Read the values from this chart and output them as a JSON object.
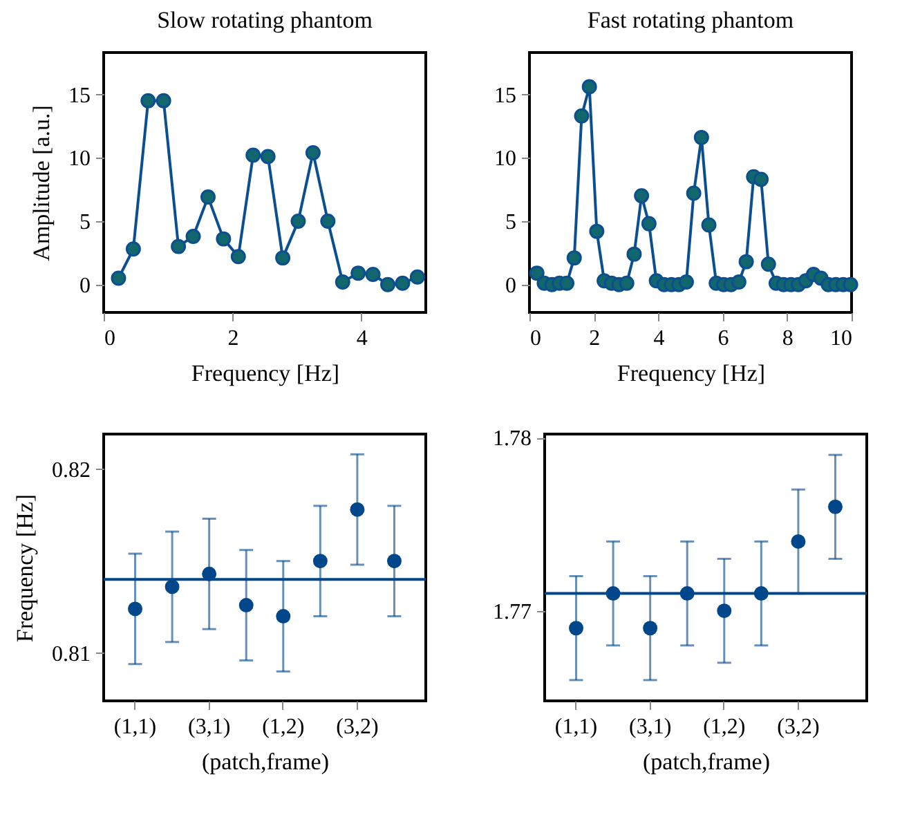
{
  "chart_data": [
    {
      "type": "line",
      "title": "Slow rotating phantom",
      "xlabel": "Frequency [Hz]",
      "ylabel": "Amplitude [a.u.]",
      "xlim": [
        0,
        5
      ],
      "xticks": [
        0,
        2,
        4
      ],
      "ylim": [
        -2.2,
        18.3
      ],
      "yticks": [
        0,
        5,
        10,
        15
      ],
      "marker": "circle",
      "line_style": "solid",
      "grid": false,
      "series": [
        {
          "color": "#0b4f91",
          "x": [
            0.23,
            0.46,
            0.69,
            0.93,
            1.16,
            1.39,
            1.62,
            1.86,
            2.09,
            2.32,
            2.55,
            2.78,
            3.02,
            3.25,
            3.48,
            3.71,
            3.95,
            4.18,
            4.41,
            4.64,
            4.87
          ],
          "values": [
            0.5,
            2.8,
            14.5,
            14.5,
            3.0,
            3.8,
            6.9,
            3.6,
            2.2,
            10.2,
            10.1,
            2.1,
            5.0,
            10.4,
            5.0,
            0.2,
            0.9,
            0.8,
            0.0,
            0.1,
            0.6
          ]
        }
      ]
    },
    {
      "type": "line",
      "title": "Fast rotating phantom",
      "xlabel": "Frequency [Hz]",
      "xlim": [
        0,
        10
      ],
      "xticks": [
        0,
        2,
        4,
        6,
        8,
        10
      ],
      "ylim": [
        -2.2,
        18.3
      ],
      "yticks": [
        0,
        5,
        10,
        15
      ],
      "marker": "circle",
      "line_style": "solid",
      "grid": false,
      "series": [
        {
          "color": "#0b4f91",
          "x": [
            0.23,
            0.46,
            0.7,
            0.93,
            1.16,
            1.39,
            1.62,
            1.86,
            2.09,
            2.32,
            2.55,
            2.78,
            3.02,
            3.25,
            3.48,
            3.71,
            3.94,
            4.18,
            4.41,
            4.64,
            4.87,
            5.1,
            5.34,
            5.57,
            5.8,
            6.03,
            6.26,
            6.5,
            6.73,
            6.96,
            7.19,
            7.42,
            7.66,
            7.89,
            8.12,
            8.35,
            8.58,
            8.82,
            9.05,
            9.28,
            9.51,
            9.74,
            9.97
          ],
          "values": [
            0.9,
            0.1,
            0.0,
            0.1,
            0.1,
            2.1,
            13.3,
            15.6,
            4.2,
            0.3,
            0.1,
            0.0,
            0.1,
            2.4,
            7.0,
            4.8,
            0.3,
            0.0,
            0.0,
            0.0,
            0.2,
            7.2,
            11.6,
            4.7,
            0.1,
            0.0,
            0.0,
            0.2,
            1.8,
            8.5,
            8.3,
            1.6,
            0.1,
            0.0,
            0.0,
            0.0,
            0.3,
            0.8,
            0.5,
            0.0,
            0.0,
            0.0,
            0.0
          ]
        }
      ]
    },
    {
      "type": "scatter",
      "xlabel": "(patch,frame)",
      "ylabel": "Frequency [Hz]",
      "categories": [
        "(1,1)",
        null,
        "(3,1)",
        null,
        "(1,2)",
        null,
        "(3,2)",
        null
      ],
      "ylim": [
        0.8074,
        0.8219
      ],
      "yticks": [
        0.81,
        0.82
      ],
      "marker": "circle",
      "grid": false,
      "series": [
        {
          "color": "#00468b",
          "values": [
            0.8124,
            0.8136,
            0.8143,
            0.8126,
            0.812,
            0.815,
            0.8178,
            0.815
          ],
          "errors": [
            0.003,
            0.003,
            0.003,
            0.003,
            0.003,
            0.003,
            0.003,
            0.003
          ]
        }
      ],
      "ref_lines": [
        {
          "axis": "y",
          "value": 0.814,
          "color": "#00468b"
        }
      ]
    },
    {
      "type": "scatter",
      "xlabel": "(patch,frame)",
      "categories": [
        "(1,1)",
        null,
        "(3,1)",
        null,
        "(1,2)",
        null,
        "(3,2)",
        null
      ],
      "ylim": [
        1.7648,
        1.7802
      ],
      "yticks": [
        1.77,
        1.78
      ],
      "marker": "circle",
      "grid": false,
      "series": [
        {
          "color": "#00468b",
          "values": [
            1.769,
            1.771,
            1.769,
            1.771,
            1.77,
            1.771,
            1.774,
            1.776
          ],
          "errors": [
            0.003,
            0.003,
            0.003,
            0.003,
            0.003,
            0.003,
            0.003,
            0.003
          ]
        }
      ],
      "ref_lines": [
        {
          "axis": "y",
          "value": 1.771,
          "color": "#00468b"
        }
      ]
    }
  ]
}
